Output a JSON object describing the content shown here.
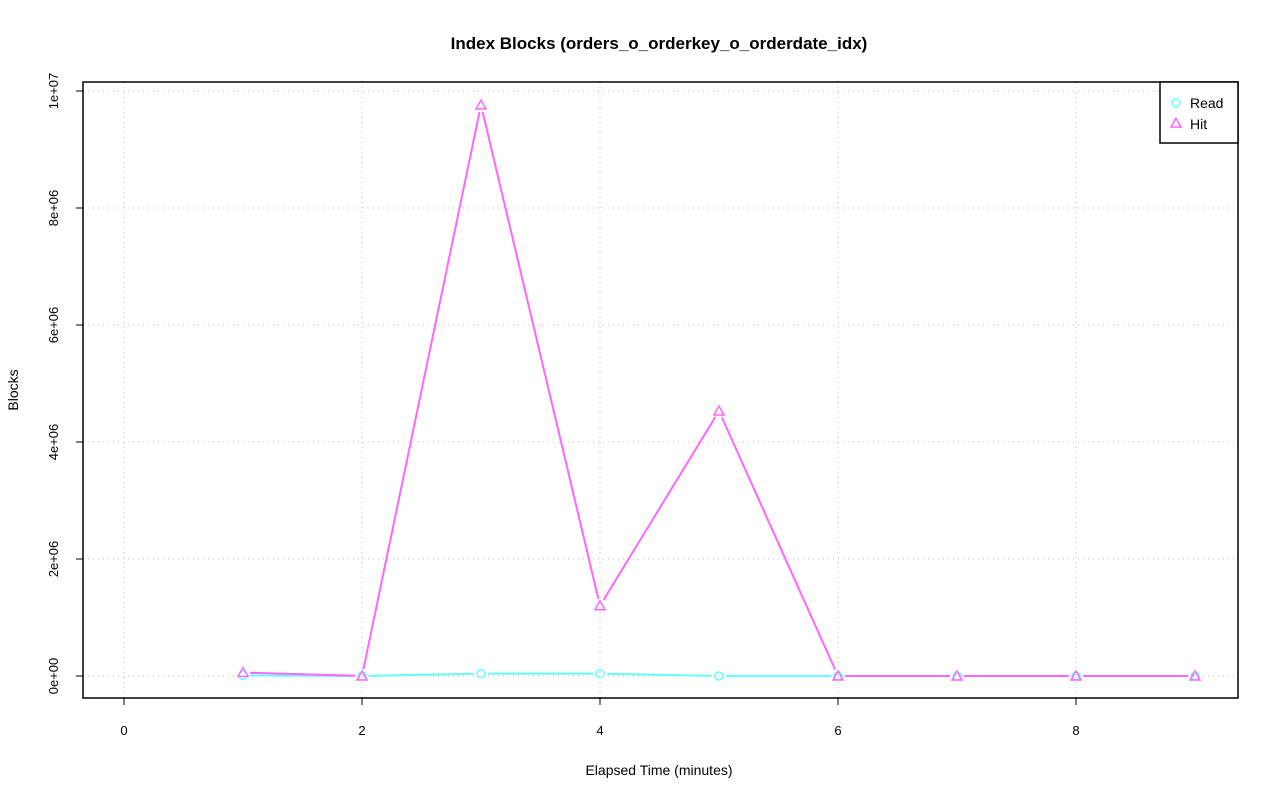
{
  "chart_data": {
    "type": "line",
    "title": "Index Blocks (orders_o_orderkey_o_orderdate_idx)",
    "xlabel": "Elapsed Time (minutes)",
    "ylabel": "Blocks",
    "xlim": [
      0,
      9
    ],
    "ylim": [
      0,
      10000000
    ],
    "x_ticks": [
      0,
      2,
      4,
      6,
      8
    ],
    "x_tick_labels": [
      "0",
      "2",
      "4",
      "6",
      "8"
    ],
    "y_ticks": [
      0,
      2000000,
      4000000,
      6000000,
      8000000,
      10000000
    ],
    "y_tick_labels": [
      "0e+00",
      "2e+06",
      "4e+06",
      "6e+06",
      "8e+06",
      "1e+07"
    ],
    "grid": true,
    "legend_position": "top-right",
    "x": [
      1,
      2,
      3,
      4,
      5,
      6,
      7,
      8,
      9
    ],
    "series": [
      {
        "name": "Read",
        "color": "#66ffff",
        "marker": "circle",
        "values": [
          10000,
          0,
          40000,
          40000,
          0,
          0,
          0,
          0,
          0
        ]
      },
      {
        "name": "Hit",
        "color": "#ff66ff",
        "marker": "triangle",
        "values": [
          60000,
          0,
          9760000,
          1200000,
          4530000,
          0,
          0,
          0,
          0
        ]
      }
    ]
  }
}
